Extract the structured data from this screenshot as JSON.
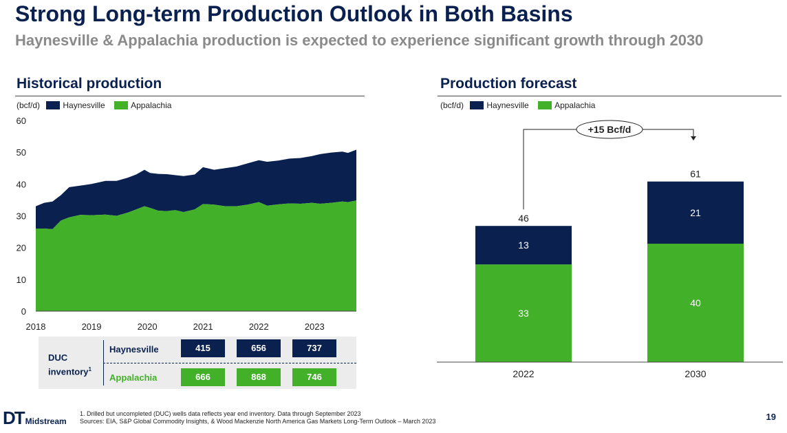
{
  "header": {
    "title": "Strong Long-term Production Outlook in Both Basins",
    "subtitle": "Haynesville & Appalachia production is expected to experience significant growth through 2030"
  },
  "chart_data": [
    {
      "type": "area",
      "title": "Historical production",
      "unit_label": "(bcf/d)",
      "stacked": true,
      "legend": [
        "Haynesville",
        "Appalachia"
      ],
      "x_ticks": [
        "2018",
        "2019",
        "2020",
        "2021",
        "2022",
        "2023"
      ],
      "y_ticks": [
        0,
        10,
        20,
        30,
        40,
        50,
        60
      ],
      "ylim": [
        0,
        60
      ],
      "xlim": [
        2018,
        2023.75
      ],
      "series": [
        {
          "name": "Appalachia",
          "color": "#43b02a",
          "points": [
            [
              2018.0,
              26.0
            ],
            [
              2018.15,
              26.0
            ],
            [
              2018.3,
              25.8
            ],
            [
              2018.45,
              28.5
            ],
            [
              2018.6,
              29.5
            ],
            [
              2018.8,
              30.3
            ],
            [
              2019.0,
              30.2
            ],
            [
              2019.25,
              30.4
            ],
            [
              2019.45,
              30.0
            ],
            [
              2019.65,
              31.0
            ],
            [
              2019.8,
              32.0
            ],
            [
              2019.95,
              33.0
            ],
            [
              2020.05,
              32.5
            ],
            [
              2020.2,
              31.6
            ],
            [
              2020.35,
              31.5
            ],
            [
              2020.5,
              31.8
            ],
            [
              2020.65,
              31.2
            ],
            [
              2020.85,
              32.0
            ],
            [
              2021.0,
              33.7
            ],
            [
              2021.2,
              33.5
            ],
            [
              2021.4,
              33.0
            ],
            [
              2021.6,
              33.0
            ],
            [
              2021.8,
              33.5
            ],
            [
              2022.0,
              34.3
            ],
            [
              2022.15,
              33.2
            ],
            [
              2022.35,
              33.6
            ],
            [
              2022.55,
              33.9
            ],
            [
              2022.75,
              33.8
            ],
            [
              2022.95,
              34.1
            ],
            [
              2023.1,
              33.8
            ],
            [
              2023.3,
              34.1
            ],
            [
              2023.5,
              34.5
            ],
            [
              2023.6,
              34.3
            ],
            [
              2023.75,
              34.8
            ]
          ]
        },
        {
          "name": "Haynesville",
          "color": "#0a2150",
          "total_points": [
            [
              2018.0,
              33.0
            ],
            [
              2018.15,
              34.1
            ],
            [
              2018.3,
              34.5
            ],
            [
              2018.45,
              36.5
            ],
            [
              2018.6,
              39.0
            ],
            [
              2018.8,
              39.5
            ],
            [
              2019.0,
              40.0
            ],
            [
              2019.25,
              41.0
            ],
            [
              2019.45,
              41.0
            ],
            [
              2019.65,
              42.0
            ],
            [
              2019.8,
              43.0
            ],
            [
              2019.95,
              44.5
            ],
            [
              2020.05,
              43.5
            ],
            [
              2020.2,
              43.2
            ],
            [
              2020.35,
              43.1
            ],
            [
              2020.5,
              42.8
            ],
            [
              2020.65,
              42.5
            ],
            [
              2020.85,
              43.0
            ],
            [
              2021.0,
              45.3
            ],
            [
              2021.2,
              44.5
            ],
            [
              2021.4,
              45.0
            ],
            [
              2021.6,
              45.5
            ],
            [
              2021.8,
              46.5
            ],
            [
              2022.0,
              47.5
            ],
            [
              2022.15,
              47.0
            ],
            [
              2022.35,
              47.4
            ],
            [
              2022.55,
              48.0
            ],
            [
              2022.75,
              48.2
            ],
            [
              2022.95,
              48.8
            ],
            [
              2023.1,
              49.4
            ],
            [
              2023.3,
              49.9
            ],
            [
              2023.5,
              50.2
            ],
            [
              2023.6,
              49.8
            ],
            [
              2023.75,
              50.8
            ]
          ]
        }
      ]
    },
    {
      "type": "bar",
      "stacked": true,
      "title": "Production forecast",
      "unit_label": "(bcf/d)",
      "legend": [
        "Haynesville",
        "Appalachia"
      ],
      "categories": [
        "2022",
        "2030"
      ],
      "series": [
        {
          "name": "Appalachia",
          "color": "#43b02a",
          "values": [
            33,
            40
          ]
        },
        {
          "name": "Haynesville",
          "color": "#0a2150",
          "values": [
            13,
            21
          ]
        }
      ],
      "totals": [
        "46",
        "61"
      ],
      "annotation": "+15 Bcf/d"
    }
  ],
  "duc": {
    "label_line1": "DUC",
    "label_line2": "inventory",
    "label_sup": "1",
    "rows": [
      {
        "name": "Haynesville",
        "values": [
          "415",
          "656",
          "737"
        ]
      },
      {
        "name": "Appalachia",
        "values": [
          "666",
          "868",
          "746"
        ]
      }
    ]
  },
  "footer": {
    "note1": "1. Drilled but uncompleted (DUC) wells data reflects year end inventory. Data through September 2023",
    "note2": "Sources: EIA, S&P Global Commodity Insights, & Wood Mackenzie North America Gas Markets Long-Term Outlook – March 2023",
    "logo_mark": "DT",
    "logo_text": "Midstream",
    "page": "19"
  },
  "colors": {
    "navy": "#0a2150",
    "green": "#43b02a",
    "grey_text": "#8a8a8a"
  }
}
